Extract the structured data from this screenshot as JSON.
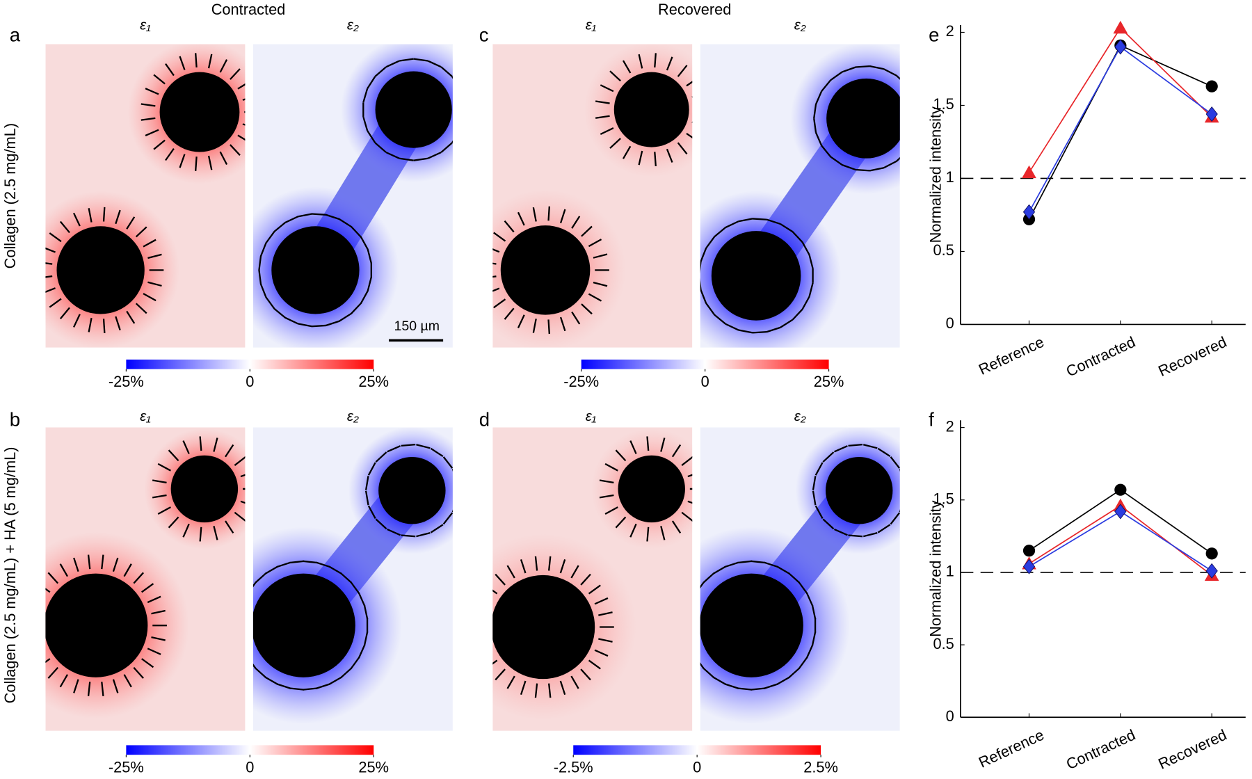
{
  "figure": {
    "column_titles": [
      "Contracted",
      "Recovered"
    ],
    "row_titles": [
      "Collagen (2.5 mg/mL)",
      "Collagen (2.5 mg/mL) + HA (5 mg/mL)"
    ],
    "panel_labels": [
      "a",
      "b",
      "c",
      "d",
      "e",
      "f"
    ],
    "strain_labels": [
      "ε₁",
      "ε₂"
    ],
    "scale_bar": "150 µm",
    "colorbars": [
      {
        "lim": [
          -25,
          25
        ],
        "ticks": [
          {
            "value": -25,
            "label": "-25%"
          },
          0,
          {
            "value": 25,
            "label": "25%"
          }
        ]
      },
      {
        "lim": [
          -25,
          25
        ],
        "ticks": [
          {
            "value": -25,
            "label": "-25%"
          },
          0,
          {
            "value": 25,
            "label": "25%"
          }
        ]
      },
      {
        "lim": [
          -25,
          25
        ],
        "ticks": [
          {
            "value": -25,
            "label": "-25%"
          },
          0,
          {
            "value": 25,
            "label": "25%"
          }
        ]
      },
      {
        "lim": [
          -2.5,
          2.5
        ],
        "ticks": [
          {
            "value": -2.5,
            "label": "-2.5%"
          },
          0,
          {
            "value": 2.5,
            "label": "2.5%"
          }
        ]
      }
    ]
  },
  "chart_data": [
    {
      "type": "line",
      "ylabel": "Normalized intensity",
      "categories": [
        "Reference",
        "Contracted",
        "Recovered"
      ],
      "ylim": [
        0,
        2.05
      ],
      "yticks": [
        0,
        0.5,
        1,
        1.5,
        2
      ],
      "reference_line": 1,
      "series": [
        {
          "color": "#000000",
          "marker": "circle",
          "values": [
            0.72,
            1.91,
            1.63
          ]
        },
        {
          "color": "#e8262a",
          "marker": "triangle",
          "values": [
            1.04,
            2.03,
            1.42
          ]
        },
        {
          "color": "#2b3ce0",
          "marker": "diamond",
          "values": [
            0.77,
            1.9,
            1.44
          ]
        }
      ]
    },
    {
      "type": "line",
      "ylabel": "Normalized intensity",
      "categories": [
        "Reference",
        "Contracted",
        "Recovered"
      ],
      "ylim": [
        0,
        2.05
      ],
      "yticks": [
        0,
        0.5,
        1,
        1.5,
        2
      ],
      "reference_line": 1,
      "series": [
        {
          "color": "#000000",
          "marker": "circle",
          "values": [
            1.15,
            1.57,
            1.13
          ]
        },
        {
          "color": "#e8262a",
          "marker": "triangle",
          "values": [
            1.06,
            1.46,
            0.98
          ]
        },
        {
          "color": "#2b3ce0",
          "marker": "diamond",
          "values": [
            1.04,
            1.42,
            1.01
          ]
        }
      ]
    }
  ]
}
